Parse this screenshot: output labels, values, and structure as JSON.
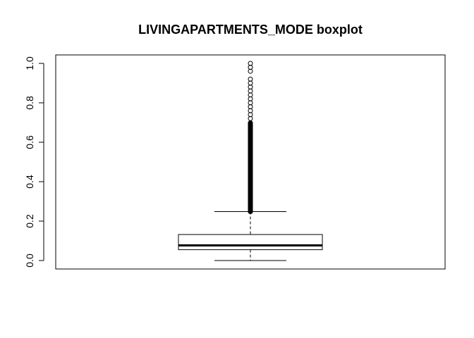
{
  "chart_data": {
    "type": "boxplot",
    "title": "LIVINGAPARTMENTS_MODE boxplot",
    "xlabel": "",
    "ylabel": "",
    "ylim": [
      0,
      1
    ],
    "yticks": [
      0.0,
      0.2,
      0.4,
      0.6,
      0.8,
      1.0
    ],
    "ytick_labels": [
      "0.0",
      "0.2",
      "0.4",
      "0.6",
      "0.8",
      "1.0"
    ],
    "grid": false,
    "box": {
      "whisker_low": 0.0,
      "q1": 0.055,
      "median": 0.077,
      "q3": 0.132,
      "whisker_high": 0.248
    },
    "outliers_dense_range": [
      0.248,
      0.7
    ],
    "outliers_sparse": [
      0.72,
      0.74,
      0.76,
      0.78,
      0.8,
      0.82,
      0.84,
      0.86,
      0.88,
      0.9,
      0.92,
      0.96,
      0.98,
      1.0
    ],
    "colors": {
      "stroke": "#000000",
      "background": "#ffffff"
    }
  }
}
